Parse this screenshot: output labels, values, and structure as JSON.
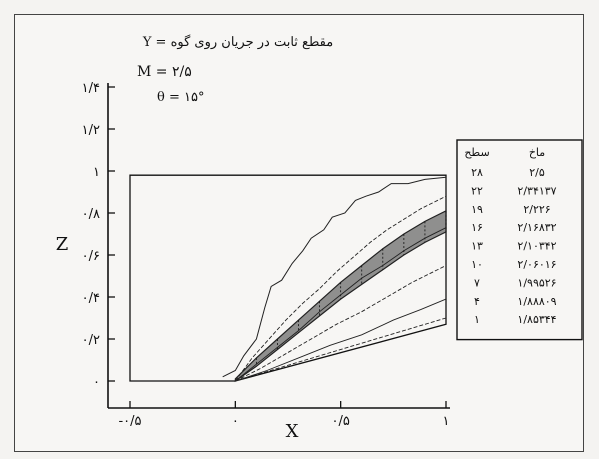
{
  "chart_data": {
    "type": "line",
    "title": "مقطع ثابت در جریان روی گوه = Y",
    "params": [
      "M = ۲/۵",
      "θ = ۱۵°"
    ],
    "xlabel": "X",
    "ylabel": "Z",
    "xlim": [
      -0.5,
      1.0
    ],
    "ylim": [
      0,
      1.4
    ],
    "x_ticks": [
      {
        "v": -0.5,
        "label": "-۰/۵"
      },
      {
        "v": 0.0,
        "label": "۰"
      },
      {
        "v": 0.5,
        "label": "۰/۵"
      },
      {
        "v": 1.0,
        "label": "۱"
      }
    ],
    "y_ticks": [
      {
        "v": 0.0,
        "label": "۰"
      },
      {
        "v": 0.2,
        "label": "۰/۲"
      },
      {
        "v": 0.4,
        "label": "۰/۴"
      },
      {
        "v": 0.6,
        "label": "۰/۶"
      },
      {
        "v": 0.8,
        "label": "۰/۸"
      },
      {
        "v": 1.0,
        "label": "۱"
      },
      {
        "v": 1.2,
        "label": "۱/۲"
      },
      {
        "v": 1.4,
        "label": "۱/۴"
      }
    ],
    "domain": [
      [
        -0.5,
        0
      ],
      [
        0,
        0
      ],
      [
        1,
        0.27
      ],
      [
        1,
        0.98
      ],
      [
        -0.5,
        0.98
      ]
    ],
    "legend": {
      "position": "right",
      "headers": [
        "سطح",
        "ماخ"
      ],
      "rows": [
        {
          "level": "۲۸",
          "mach": "۲/۵"
        },
        {
          "level": "۲۲",
          "mach": "۲/۳۴۱۳۷"
        },
        {
          "level": "۱۹",
          "mach": "۲/۲۲۶"
        },
        {
          "level": "۱۶",
          "mach": "۲/۱۶۸۳۲"
        },
        {
          "level": "۱۳",
          "mach": "۲/۱۰۳۴۲"
        },
        {
          "level": "۱۰",
          "mach": "۲/۰۶۰۱۶"
        },
        {
          "level": "۷",
          "mach": "۱/۹۹۵۲۶"
        },
        {
          "level": "۴",
          "mach": "۱/۸۸۸۰۹"
        },
        {
          "level": "۱",
          "mach": "۱/۸۵۳۴۴"
        }
      ]
    },
    "series": [
      {
        "values": [
          [
            -0.06,
            0.02
          ],
          [
            0.0,
            0.05
          ],
          [
            0.04,
            0.12
          ],
          [
            0.1,
            0.2
          ],
          [
            0.14,
            0.35
          ],
          [
            0.17,
            0.45
          ],
          [
            0.22,
            0.48
          ],
          [
            0.27,
            0.56
          ],
          [
            0.32,
            0.62
          ],
          [
            0.36,
            0.68
          ],
          [
            0.42,
            0.72
          ],
          [
            0.46,
            0.78
          ],
          [
            0.52,
            0.8
          ],
          [
            0.57,
            0.86
          ],
          [
            0.62,
            0.88
          ],
          [
            0.68,
            0.9
          ],
          [
            0.74,
            0.94
          ],
          [
            0.82,
            0.94
          ],
          [
            0.9,
            0.96
          ],
          [
            1.0,
            0.97
          ]
        ]
      },
      {
        "values": [
          [
            0.0,
            0.0
          ],
          [
            0.08,
            0.11
          ],
          [
            0.16,
            0.2
          ],
          [
            0.24,
            0.29
          ],
          [
            0.32,
            0.37
          ],
          [
            0.4,
            0.44
          ],
          [
            0.48,
            0.52
          ],
          [
            0.56,
            0.59
          ],
          [
            0.64,
            0.66
          ],
          [
            0.72,
            0.72
          ],
          [
            0.8,
            0.77
          ],
          [
            0.88,
            0.82
          ],
          [
            1.0,
            0.88
          ]
        ]
      },
      {
        "values": [
          [
            0.0,
            0.0
          ],
          [
            0.1,
            0.08
          ],
          [
            0.2,
            0.16
          ],
          [
            0.3,
            0.24
          ],
          [
            0.4,
            0.33
          ],
          [
            0.5,
            0.41
          ],
          [
            0.6,
            0.49
          ],
          [
            0.7,
            0.55
          ],
          [
            0.8,
            0.62
          ],
          [
            0.9,
            0.68
          ],
          [
            1.0,
            0.73
          ]
        ]
      },
      {
        "values": [
          [
            0.0,
            0.0
          ],
          [
            0.12,
            0.06
          ],
          [
            0.24,
            0.13
          ],
          [
            0.36,
            0.2
          ],
          [
            0.48,
            0.27
          ],
          [
            0.6,
            0.33
          ],
          [
            0.72,
            0.4
          ],
          [
            0.84,
            0.47
          ],
          [
            1.0,
            0.55
          ]
        ]
      },
      {
        "values": [
          [
            0.0,
            0.0
          ],
          [
            0.15,
            0.05
          ],
          [
            0.3,
            0.11
          ],
          [
            0.45,
            0.17
          ],
          [
            0.6,
            0.22
          ],
          [
            0.75,
            0.29
          ],
          [
            0.88,
            0.34
          ],
          [
            1.0,
            0.39
          ]
        ]
      },
      {
        "values": [
          [
            0.0,
            0.0
          ],
          [
            0.2,
            0.06
          ],
          [
            0.4,
            0.12
          ],
          [
            0.6,
            0.18
          ],
          [
            0.8,
            0.24
          ],
          [
            1.0,
            0.3
          ]
        ]
      }
    ],
    "band": {
      "lower": [
        [
          0.0,
          0.0
        ],
        [
          0.1,
          0.07
        ],
        [
          0.2,
          0.15
        ],
        [
          0.3,
          0.23
        ],
        [
          0.4,
          0.31
        ],
        [
          0.5,
          0.39
        ],
        [
          0.6,
          0.46
        ],
        [
          0.7,
          0.53
        ],
        [
          0.8,
          0.6
        ],
        [
          0.9,
          0.66
        ],
        [
          1.0,
          0.71
        ]
      ],
      "upper": [
        [
          0.0,
          0.01
        ],
        [
          0.1,
          0.11
        ],
        [
          0.2,
          0.2
        ],
        [
          0.3,
          0.29
        ],
        [
          0.4,
          0.38
        ],
        [
          0.5,
          0.47
        ],
        [
          0.6,
          0.55
        ],
        [
          0.7,
          0.63
        ],
        [
          0.8,
          0.7
        ],
        [
          0.9,
          0.76
        ],
        [
          1.0,
          0.81
        ]
      ]
    },
    "grid": false
  }
}
